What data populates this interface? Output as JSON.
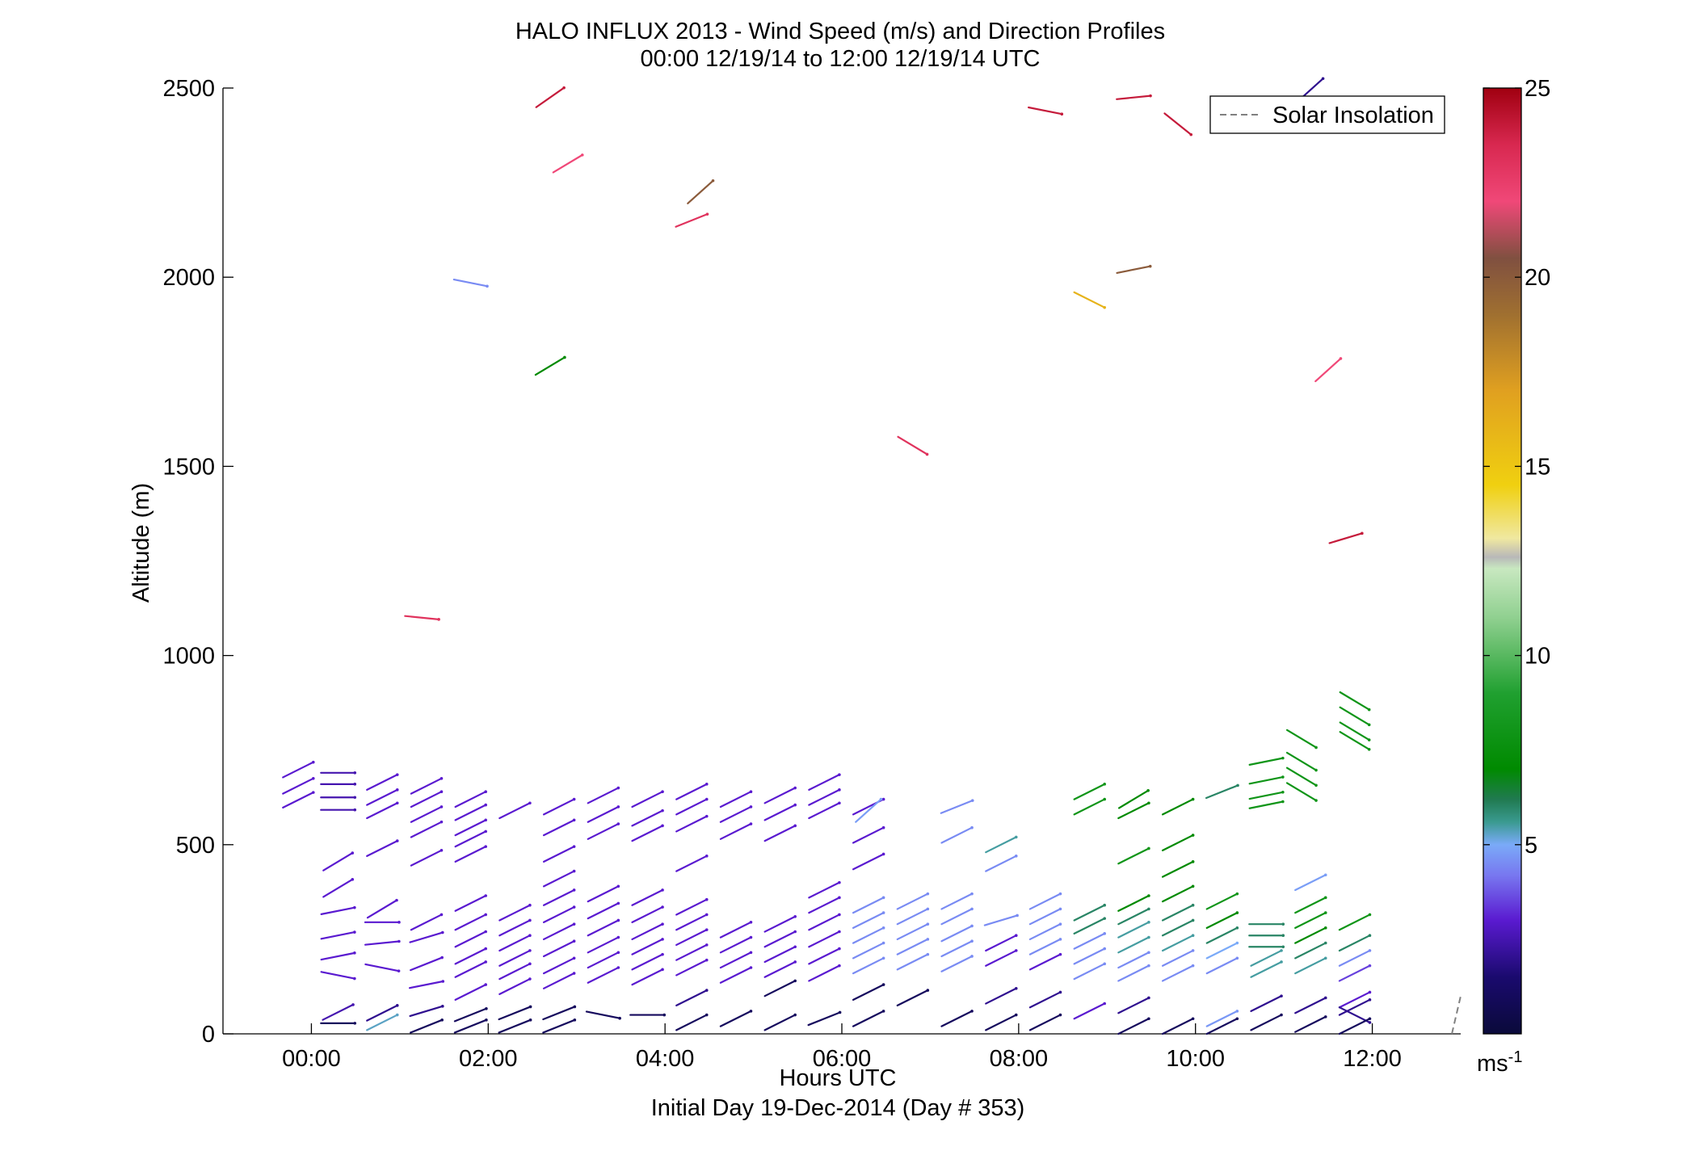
{
  "chart_data": {
    "type": "wind-barb-profile",
    "title": "HALO INFLUX 2013 - Wind Speed (m/s) and Direction Profiles",
    "subtitle": "00:00 12/19/14 to 12:00 12/19/14  UTC",
    "xlabel": "Hours UTC",
    "xlabel2": "Initial Day 19-Dec-2014 (Day # 353)",
    "ylabel": "Altitude (m)",
    "xlim": [
      -1.0,
      13.0
    ],
    "ylim": [
      0,
      2500
    ],
    "x_ticks": [
      0,
      2,
      4,
      6,
      8,
      10,
      12
    ],
    "x_tick_labels": [
      "00:00",
      "02:00",
      "04:00",
      "06:00",
      "08:00",
      "10:00",
      "12:00"
    ],
    "y_ticks": [
      0,
      500,
      1000,
      1500,
      2000,
      2500
    ],
    "y_tick_labels": [
      "0",
      "500",
      "1000",
      "1500",
      "2000",
      "2500"
    ],
    "grid": false,
    "legend": {
      "label": "Solar Insolation",
      "position": "top-right",
      "style": "dashed",
      "color": "#808080"
    },
    "colorbar": {
      "min": 0,
      "max": 25,
      "ticks": [
        5,
        10,
        15,
        20,
        25
      ],
      "tick_labels": [
        "5",
        "10",
        "15",
        "20",
        "25"
      ],
      "unit_base": "ms",
      "unit_exp": "-1",
      "stops": [
        {
          "v": 0,
          "c": "#0a0a3a"
        },
        {
          "v": 1.5,
          "c": "#1a0a6e"
        },
        {
          "v": 3,
          "c": "#5a1ad0"
        },
        {
          "v": 4.2,
          "c": "#7878f0"
        },
        {
          "v": 5,
          "c": "#7aaaf8"
        },
        {
          "v": 5.6,
          "c": "#3a9a90"
        },
        {
          "v": 6.2,
          "c": "#207a50"
        },
        {
          "v": 7,
          "c": "#008a00"
        },
        {
          "v": 9,
          "c": "#20a030"
        },
        {
          "v": 11,
          "c": "#90d090"
        },
        {
          "v": 12.3,
          "c": "#c8e8c0"
        },
        {
          "v": 12.6,
          "c": "#b8b8b8"
        },
        {
          "v": 13.1,
          "c": "#f0e8a0"
        },
        {
          "v": 14.5,
          "c": "#f0d010"
        },
        {
          "v": 17,
          "c": "#e0a020"
        },
        {
          "v": 19,
          "c": "#a07030"
        },
        {
          "v": 20.5,
          "c": "#805040"
        },
        {
          "v": 22,
          "c": "#f04878"
        },
        {
          "v": 23.5,
          "c": "#d82850"
        },
        {
          "v": 25,
          "c": "#a00010"
        }
      ]
    },
    "solar_insolation": [
      [
        12.9,
        0
      ],
      [
        13.0,
        100
      ]
    ],
    "barbs": [
      [
        -0.15,
        698,
        -0.5,
        3
      ],
      [
        -0.15,
        655,
        -0.5,
        3
      ],
      [
        -0.15,
        618,
        -0.5,
        3
      ],
      [
        0.3,
        690,
        0,
        2.5
      ],
      [
        0.3,
        660,
        0,
        2.5
      ],
      [
        0.3,
        625,
        0,
        2.5
      ],
      [
        0.3,
        592,
        0,
        2.5
      ],
      [
        0.3,
        455,
        -0.6,
        3
      ],
      [
        0.3,
        385,
        -0.6,
        3
      ],
      [
        0.3,
        325,
        -0.2,
        3
      ],
      [
        0.3,
        260,
        -0.2,
        3
      ],
      [
        0.3,
        205,
        -0.2,
        3
      ],
      [
        0.3,
        155,
        0.2,
        3
      ],
      [
        0.3,
        57,
        -0.5,
        2.5
      ],
      [
        0.3,
        28,
        0,
        1
      ],
      [
        0.8,
        665,
        -0.5,
        3
      ],
      [
        0.8,
        625,
        -0.5,
        3
      ],
      [
        0.8,
        590,
        -0.5,
        3
      ],
      [
        0.8,
        490,
        -0.5,
        3
      ],
      [
        0.8,
        330,
        -0.6,
        3
      ],
      [
        0.8,
        295,
        0,
        3
      ],
      [
        0.8,
        240,
        -0.1,
        3
      ],
      [
        0.8,
        175,
        0.2,
        3
      ],
      [
        0.8,
        55,
        -0.5,
        2
      ],
      [
        0.8,
        30,
        -0.5,
        5.3
      ],
      [
        1.3,
        655,
        -0.5,
        3
      ],
      [
        1.3,
        620,
        -0.5,
        3
      ],
      [
        1.3,
        580,
        -0.5,
        3
      ],
      [
        1.3,
        540,
        -0.5,
        3
      ],
      [
        1.3,
        465,
        -0.5,
        3
      ],
      [
        1.3,
        295,
        -0.5,
        3
      ],
      [
        1.3,
        255,
        -0.3,
        3
      ],
      [
        1.3,
        185,
        -0.4,
        3
      ],
      [
        1.3,
        130,
        -0.2,
        3
      ],
      [
        1.3,
        60,
        -0.3,
        2
      ],
      [
        1.3,
        20,
        -0.4,
        1
      ],
      [
        1.25,
        1100,
        0.1,
        23
      ],
      [
        1.8,
        620,
        -0.5,
        3
      ],
      [
        1.8,
        585,
        -0.5,
        3
      ],
      [
        1.8,
        545,
        -0.5,
        3
      ],
      [
        1.8,
        515,
        -0.5,
        3
      ],
      [
        1.8,
        475,
        -0.5,
        3
      ],
      [
        1.8,
        345,
        -0.5,
        3
      ],
      [
        1.8,
        295,
        -0.5,
        3
      ],
      [
        1.8,
        250,
        -0.5,
        3
      ],
      [
        1.8,
        205,
        -0.5,
        3
      ],
      [
        1.8,
        170,
        -0.5,
        3
      ],
      [
        1.8,
        110,
        -0.5,
        3
      ],
      [
        1.8,
        50,
        -0.4,
        1
      ],
      [
        1.8,
        20,
        -0.4,
        1
      ],
      [
        1.8,
        1985,
        0.2,
        4.5
      ],
      [
        2.3,
        590,
        -0.5,
        3
      ],
      [
        2.3,
        320,
        -0.5,
        3
      ],
      [
        2.3,
        280,
        -0.5,
        3
      ],
      [
        2.3,
        240,
        -0.5,
        3
      ],
      [
        2.3,
        200,
        -0.5,
        3
      ],
      [
        2.3,
        165,
        -0.5,
        3
      ],
      [
        2.3,
        125,
        -0.5,
        3
      ],
      [
        2.3,
        55,
        -0.4,
        1
      ],
      [
        2.3,
        20,
        -0.4,
        1
      ],
      [
        2.8,
        600,
        -0.5,
        3
      ],
      [
        2.8,
        545,
        -0.5,
        3
      ],
      [
        2.8,
        475,
        -0.5,
        3
      ],
      [
        2.8,
        410,
        -0.5,
        3
      ],
      [
        2.8,
        360,
        -0.5,
        3
      ],
      [
        2.8,
        315,
        -0.5,
        3
      ],
      [
        2.8,
        270,
        -0.5,
        3
      ],
      [
        2.8,
        225,
        -0.5,
        3
      ],
      [
        2.8,
        180,
        -0.5,
        3
      ],
      [
        2.8,
        140,
        -0.5,
        3
      ],
      [
        2.8,
        55,
        -0.4,
        1
      ],
      [
        2.8,
        20,
        -0.4,
        1
      ],
      [
        2.7,
        2475,
        -0.7,
        24
      ],
      [
        2.9,
        2300,
        -0.6,
        22
      ],
      [
        2.7,
        1765,
        -0.6,
        7
      ],
      [
        3.3,
        630,
        -0.5,
        3
      ],
      [
        3.3,
        580,
        -0.5,
        3
      ],
      [
        3.3,
        535,
        -0.5,
        3
      ],
      [
        3.3,
        370,
        -0.5,
        3
      ],
      [
        3.3,
        325,
        -0.5,
        3
      ],
      [
        3.3,
        280,
        -0.5,
        3
      ],
      [
        3.3,
        235,
        -0.5,
        3
      ],
      [
        3.3,
        195,
        -0.5,
        3
      ],
      [
        3.3,
        155,
        -0.5,
        3
      ],
      [
        3.3,
        50,
        0.2,
        1
      ],
      [
        3.8,
        620,
        -0.5,
        3
      ],
      [
        3.8,
        570,
        -0.5,
        3
      ],
      [
        3.8,
        530,
        -0.5,
        3
      ],
      [
        3.8,
        360,
        -0.5,
        3
      ],
      [
        3.8,
        315,
        -0.5,
        3
      ],
      [
        3.8,
        270,
        -0.5,
        3
      ],
      [
        3.8,
        230,
        -0.5,
        3
      ],
      [
        3.8,
        190,
        -0.5,
        3
      ],
      [
        3.8,
        150,
        -0.5,
        3
      ],
      [
        3.8,
        50,
        0,
        1
      ],
      [
        4.3,
        640,
        -0.5,
        3
      ],
      [
        4.3,
        600,
        -0.5,
        3
      ],
      [
        4.3,
        555,
        -0.5,
        3
      ],
      [
        4.3,
        450,
        -0.5,
        3
      ],
      [
        4.3,
        335,
        -0.5,
        3
      ],
      [
        4.3,
        295,
        -0.5,
        3
      ],
      [
        4.3,
        255,
        -0.5,
        3
      ],
      [
        4.3,
        215,
        -0.5,
        3
      ],
      [
        4.3,
        175,
        -0.5,
        3
      ],
      [
        4.3,
        95,
        -0.5,
        2
      ],
      [
        4.3,
        30,
        -0.5,
        1
      ],
      [
        4.4,
        2225,
        -0.9,
        20
      ],
      [
        4.3,
        2150,
        -0.4,
        23
      ],
      [
        4.8,
        620,
        -0.5,
        3
      ],
      [
        4.8,
        580,
        -0.5,
        3
      ],
      [
        4.8,
        535,
        -0.5,
        3
      ],
      [
        4.8,
        275,
        -0.5,
        3
      ],
      [
        4.8,
        235,
        -0.5,
        3
      ],
      [
        4.8,
        195,
        -0.5,
        3
      ],
      [
        4.8,
        155,
        -0.5,
        3
      ],
      [
        4.8,
        40,
        -0.5,
        1
      ],
      [
        5.3,
        630,
        -0.5,
        3
      ],
      [
        5.3,
        585,
        -0.5,
        3
      ],
      [
        5.3,
        530,
        -0.5,
        3
      ],
      [
        5.3,
        290,
        -0.5,
        3
      ],
      [
        5.3,
        250,
        -0.5,
        3
      ],
      [
        5.3,
        210,
        -0.5,
        3
      ],
      [
        5.3,
        170,
        -0.5,
        3
      ],
      [
        5.3,
        120,
        -0.5,
        1
      ],
      [
        5.3,
        30,
        -0.5,
        1
      ],
      [
        5.8,
        665,
        -0.5,
        3
      ],
      [
        5.8,
        625,
        -0.5,
        3
      ],
      [
        5.8,
        590,
        -0.5,
        3
      ],
      [
        5.8,
        380,
        -0.5,
        3
      ],
      [
        5.8,
        340,
        -0.5,
        3
      ],
      [
        5.8,
        295,
        -0.5,
        3
      ],
      [
        5.8,
        250,
        -0.5,
        3
      ],
      [
        5.8,
        205,
        -0.5,
        3
      ],
      [
        5.8,
        160,
        -0.5,
        3
      ],
      [
        5.8,
        40,
        -0.4,
        1
      ],
      [
        6.3,
        600,
        -0.5,
        3
      ],
      [
        6.3,
        525,
        -0.5,
        3
      ],
      [
        6.3,
        455,
        -0.5,
        3
      ],
      [
        6.3,
        590,
        -0.9,
        4.8
      ],
      [
        6.3,
        340,
        -0.5,
        4.5
      ],
      [
        6.3,
        300,
        -0.5,
        4.5
      ],
      [
        6.3,
        260,
        -0.5,
        4.5
      ],
      [
        6.3,
        220,
        -0.5,
        4.5
      ],
      [
        6.3,
        180,
        -0.5,
        4.5
      ],
      [
        6.3,
        110,
        -0.5,
        1
      ],
      [
        6.3,
        40,
        -0.5,
        1
      ],
      [
        6.8,
        350,
        -0.5,
        4.5
      ],
      [
        6.8,
        310,
        -0.5,
        4.5
      ],
      [
        6.8,
        270,
        -0.5,
        4.5
      ],
      [
        6.8,
        230,
        -0.5,
        4.5
      ],
      [
        6.8,
        190,
        -0.5,
        4.5
      ],
      [
        6.8,
        95,
        -0.5,
        1
      ],
      [
        6.8,
        1555,
        0.6,
        23
      ],
      [
        7.3,
        600,
        -0.4,
        4.5
      ],
      [
        7.3,
        525,
        -0.5,
        4.5
      ],
      [
        7.3,
        350,
        -0.5,
        4.5
      ],
      [
        7.3,
        310,
        -0.5,
        4.5
      ],
      [
        7.3,
        265,
        -0.5,
        4.5
      ],
      [
        7.3,
        225,
        -0.5,
        4.5
      ],
      [
        7.3,
        185,
        -0.5,
        4.5
      ],
      [
        7.3,
        40,
        -0.5,
        1
      ],
      [
        7.8,
        500,
        -0.5,
        5.5
      ],
      [
        7.8,
        450,
        -0.5,
        4.5
      ],
      [
        7.8,
        300,
        -0.3,
        4.5
      ],
      [
        7.8,
        240,
        -0.5,
        3
      ],
      [
        7.8,
        200,
        -0.5,
        3
      ],
      [
        7.8,
        100,
        -0.5,
        2
      ],
      [
        7.8,
        30,
        -0.5,
        1
      ],
      [
        8.3,
        350,
        -0.5,
        4.5
      ],
      [
        8.3,
        310,
        -0.5,
        4.5
      ],
      [
        8.3,
        270,
        -0.5,
        4.5
      ],
      [
        8.3,
        230,
        -0.5,
        4.5
      ],
      [
        8.3,
        190,
        -0.5,
        3
      ],
      [
        8.3,
        90,
        -0.5,
        2
      ],
      [
        8.3,
        30,
        -0.5,
        1
      ],
      [
        8.3,
        2440,
        0.2,
        24
      ],
      [
        8.8,
        640,
        -0.5,
        8
      ],
      [
        8.8,
        600,
        -0.5,
        8
      ],
      [
        8.8,
        320,
        -0.5,
        6
      ],
      [
        8.8,
        285,
        -0.5,
        6
      ],
      [
        8.8,
        245,
        -0.5,
        4.5
      ],
      [
        8.8,
        205,
        -0.5,
        4.5
      ],
      [
        8.8,
        165,
        -0.5,
        4.5
      ],
      [
        8.8,
        60,
        -0.5,
        3
      ],
      [
        8.8,
        1940,
        0.5,
        16
      ],
      [
        9.3,
        620,
        -0.6,
        7
      ],
      [
        9.3,
        590,
        -0.5,
        7
      ],
      [
        9.3,
        470,
        -0.5,
        8
      ],
      [
        9.3,
        345,
        -0.5,
        7
      ],
      [
        9.3,
        310,
        -0.5,
        6
      ],
      [
        9.3,
        275,
        -0.5,
        5.5
      ],
      [
        9.3,
        235,
        -0.5,
        5.5
      ],
      [
        9.3,
        195,
        -0.5,
        4.5
      ],
      [
        9.3,
        160,
        -0.5,
        4.5
      ],
      [
        9.3,
        75,
        -0.5,
        2
      ],
      [
        9.3,
        20,
        -0.5,
        1
      ],
      [
        9.3,
        2475,
        -0.1,
        24
      ],
      [
        9.3,
        2020,
        -0.2,
        20
      ],
      [
        9.8,
        600,
        -0.5,
        7
      ],
      [
        9.8,
        505,
        -0.5,
        7
      ],
      [
        9.8,
        435,
        -0.5,
        7
      ],
      [
        9.8,
        370,
        -0.5,
        7
      ],
      [
        9.8,
        320,
        -0.5,
        6
      ],
      [
        9.8,
        280,
        -0.5,
        6
      ],
      [
        9.8,
        240,
        -0.5,
        5.5
      ],
      [
        9.8,
        200,
        -0.5,
        4.5
      ],
      [
        9.8,
        160,
        -0.5,
        4.5
      ],
      [
        9.8,
        20,
        -0.5,
        1
      ],
      [
        9.8,
        2405,
        0.8,
        24
      ],
      [
        10.3,
        640,
        -0.4,
        6
      ],
      [
        10.3,
        350,
        -0.5,
        8
      ],
      [
        10.3,
        300,
        -0.5,
        7
      ],
      [
        10.3,
        260,
        -0.5,
        6
      ],
      [
        10.3,
        220,
        -0.5,
        5
      ],
      [
        10.3,
        180,
        -0.5,
        4.5
      ],
      [
        10.3,
        20,
        -0.5,
        1
      ],
      [
        10.3,
        40,
        -0.5,
        4.7
      ],
      [
        10.8,
        720,
        -0.2,
        8
      ],
      [
        10.8,
        670,
        -0.2,
        8
      ],
      [
        10.8,
        630,
        -0.2,
        8
      ],
      [
        10.8,
        605,
        -0.2,
        8
      ],
      [
        10.8,
        290,
        0,
        6
      ],
      [
        10.8,
        260,
        0,
        6
      ],
      [
        10.8,
        230,
        0,
        6
      ],
      [
        10.8,
        200,
        -0.5,
        5.5
      ],
      [
        10.8,
        170,
        -0.5,
        5.5
      ],
      [
        10.8,
        80,
        -0.5,
        2
      ],
      [
        10.8,
        30,
        -0.5,
        1
      ],
      [
        11.3,
        400,
        -0.5,
        4.8
      ],
      [
        11.3,
        340,
        -0.5,
        8
      ],
      [
        11.3,
        300,
        -0.5,
        8
      ],
      [
        11.3,
        260,
        -0.5,
        7
      ],
      [
        11.3,
        220,
        -0.5,
        6
      ],
      [
        11.3,
        180,
        -0.5,
        5.5
      ],
      [
        11.3,
        75,
        -0.5,
        2
      ],
      [
        11.3,
        25,
        -0.5,
        1
      ],
      [
        11.2,
        780,
        0.6,
        8
      ],
      [
        11.2,
        720,
        0.6,
        8
      ],
      [
        11.2,
        680,
        0.6,
        8
      ],
      [
        11.2,
        640,
        0.6,
        8
      ],
      [
        11.3,
        2495,
        -0.9,
        2
      ],
      [
        11.5,
        1755,
        -0.9,
        22
      ],
      [
        11.7,
        1310,
        -0.3,
        24
      ],
      [
        11.8,
        880,
        0.6,
        8
      ],
      [
        11.8,
        840,
        0.6,
        8
      ],
      [
        11.8,
        800,
        0.6,
        8
      ],
      [
        11.8,
        775,
        0.6,
        8
      ],
      [
        11.8,
        295,
        -0.5,
        8
      ],
      [
        11.8,
        240,
        -0.5,
        6
      ],
      [
        11.8,
        200,
        -0.5,
        4.5
      ],
      [
        11.8,
        160,
        -0.5,
        3.5
      ],
      [
        11.8,
        90,
        -0.5,
        3
      ],
      [
        11.8,
        70,
        -0.5,
        2
      ],
      [
        11.8,
        50,
        0.5,
        2
      ],
      [
        11.8,
        20,
        -0.5,
        1
      ]
    ]
  }
}
